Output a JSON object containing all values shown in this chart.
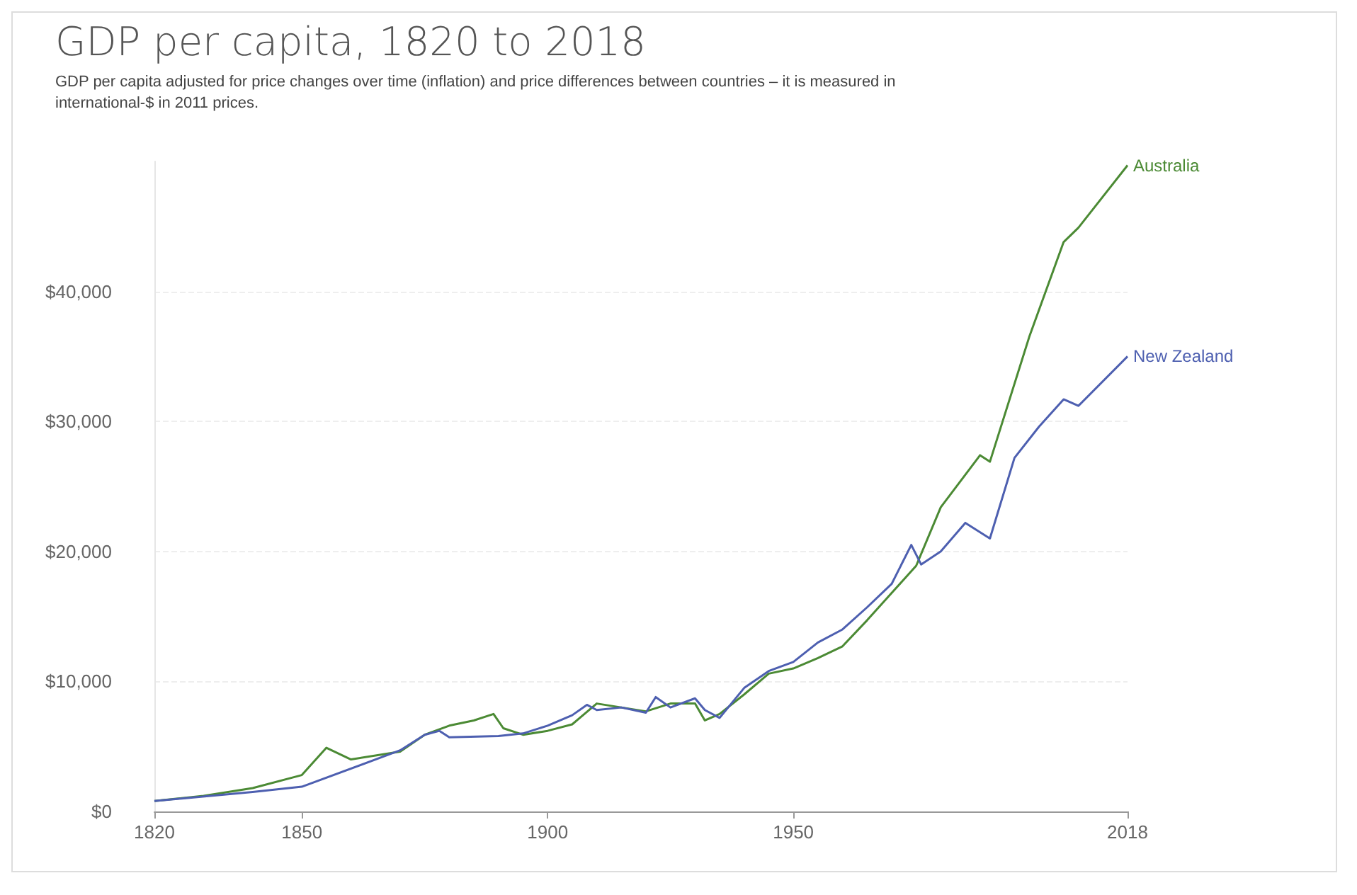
{
  "chart_data": {
    "type": "line",
    "title": "GDP per capita, 1820 to 2018",
    "subtitle": "GDP per capita adjusted for price changes over time (inflation) and price differences between countries – it is measured in international-$ in 2011 prices.",
    "series": [
      {
        "name": "Australia",
        "color": "#4b8a34",
        "x": [
          1820,
          1830,
          1840,
          1850,
          1855,
          1860,
          1870,
          1875,
          1880,
          1885,
          1889,
          1891,
          1895,
          1900,
          1905,
          1910,
          1915,
          1920,
          1925,
          1930,
          1932,
          1935,
          1940,
          1945,
          1950,
          1955,
          1960,
          1965,
          1970,
          1975,
          1980,
          1988,
          1990,
          1998,
          2005,
          2008,
          2018
        ],
        "values": [
          800,
          1200,
          1800,
          2800,
          4900,
          4000,
          4600,
          5900,
          6600,
          7000,
          7500,
          6400,
          5900,
          6200,
          6700,
          8300,
          8000,
          7700,
          8300,
          8300,
          7000,
          7500,
          9000,
          10600,
          11000,
          11800,
          12700,
          14700,
          16800,
          18900,
          23400,
          27400,
          26900,
          36500,
          43800,
          44900,
          49700
        ]
      },
      {
        "name": "New Zealand",
        "color": "#4d5fb0",
        "x": [
          1820,
          1840,
          1850,
          1870,
          1875,
          1878,
          1880,
          1890,
          1895,
          1900,
          1905,
          1908,
          1910,
          1915,
          1920,
          1922,
          1925,
          1930,
          1932,
          1935,
          1940,
          1945,
          1950,
          1955,
          1960,
          1965,
          1970,
          1974,
          1976,
          1980,
          1985,
          1990,
          1995,
          2000,
          2005,
          2008,
          2018
        ],
        "values": [
          800,
          1500,
          1900,
          4700,
          5900,
          6200,
          5700,
          5800,
          6000,
          6600,
          7400,
          8200,
          7800,
          8000,
          7600,
          8800,
          8000,
          8700,
          7800,
          7200,
          9500,
          10800,
          11500,
          13000,
          14000,
          15700,
          17500,
          20500,
          19000,
          20000,
          22200,
          21000,
          27200,
          29600,
          31700,
          31200,
          35000
        ]
      }
    ],
    "xlim": [
      1820,
      2018
    ],
    "xticks": [
      1820,
      1850,
      1900,
      1950,
      2018
    ],
    "ylim": [
      0,
      50000
    ],
    "yticks": [
      {
        "value": 0,
        "label": "$0"
      },
      {
        "value": 10000,
        "label": "$10,000"
      },
      {
        "value": 20000,
        "label": "$20,000"
      },
      {
        "value": 30000,
        "label": "$30,000"
      },
      {
        "value": 40000,
        "label": "$40,000"
      }
    ],
    "grid": "y",
    "legend": false,
    "marker": "none",
    "line_style": "solid"
  }
}
